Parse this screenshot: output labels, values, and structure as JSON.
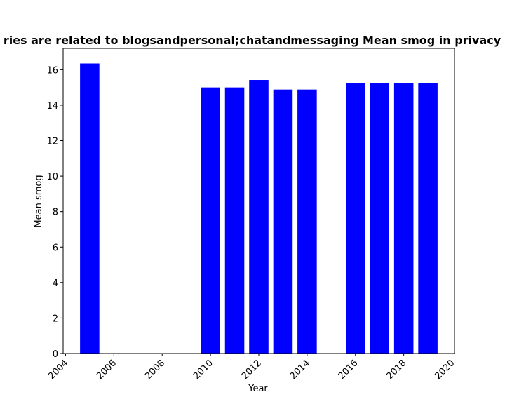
{
  "chart_data": {
    "type": "bar",
    "title": "ries are related to blogsandpersonal;chatandmessaging Mean smog in privacy p",
    "xlabel": "Year",
    "ylabel": "Mean smog",
    "x": [
      2005,
      2010,
      2011,
      2012,
      2013,
      2014,
      2016,
      2017,
      2018,
      2019
    ],
    "values": [
      16.35,
      15.0,
      15.0,
      15.42,
      14.88,
      14.88,
      15.25,
      15.25,
      15.25,
      15.25
    ],
    "xlim": [
      2003.9,
      2020.1
    ],
    "ylim": [
      0,
      17.2
    ],
    "xticks": [
      2004,
      2006,
      2008,
      2010,
      2012,
      2014,
      2016,
      2018,
      2020
    ],
    "yticks": [
      0,
      2,
      4,
      6,
      8,
      10,
      12,
      14,
      16
    ],
    "bar_color": "#0000ff",
    "grid": false,
    "legend": "none"
  }
}
